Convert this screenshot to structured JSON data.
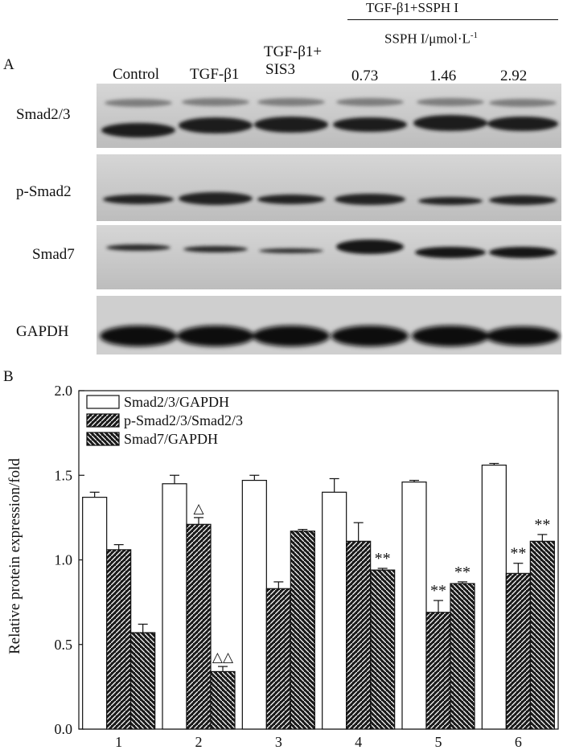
{
  "panel_a": {
    "label": "A",
    "group_header": "TGF-β1+SSPH I",
    "concentration_label": "SSPH I/μmol·L",
    "concentration_exponent": "-1",
    "lanes": [
      "Control",
      "TGF-β1",
      "TGF-β1+",
      "SIS3",
      "0.73",
      "1.46",
      "2.92"
    ],
    "rows": [
      "Smad2/3",
      "p-Smad2",
      "Smad7",
      "GAPDH"
    ]
  },
  "panel_b": {
    "label": "B"
  },
  "chart_data": {
    "type": "bar",
    "ylabel": "Relative protein expression/fold",
    "xlabel": "",
    "ylim": [
      0,
      2.0
    ],
    "yticks": [
      "0.0",
      "0.5",
      "1.0",
      "1.5",
      "2.0"
    ],
    "categories": [
      "1",
      "2",
      "3",
      "4",
      "5",
      "6"
    ],
    "grid": false,
    "legend": "top-left",
    "series": [
      {
        "name": "Smad2/3/GAPDH",
        "pattern": "open",
        "values": [
          1.37,
          1.45,
          1.47,
          1.4,
          1.46,
          1.56
        ],
        "errors": [
          0.03,
          0.05,
          0.03,
          0.08,
          0.01,
          0.01
        ]
      },
      {
        "name": "p-Smad2/3/Smad2/3",
        "pattern": "diagonal",
        "values": [
          1.06,
          1.21,
          0.83,
          1.11,
          0.69,
          0.92
        ],
        "errors": [
          0.03,
          0.04,
          0.04,
          0.11,
          0.07,
          0.06
        ]
      },
      {
        "name": "Smad7/GAPDH",
        "pattern": "cross-diagonal",
        "values": [
          0.57,
          0.34,
          1.17,
          0.94,
          0.86,
          1.11
        ],
        "errors": [
          0.05,
          0.03,
          0.01,
          0.01,
          0.01,
          0.04
        ]
      }
    ],
    "annotations": [
      {
        "series": 1,
        "category": 1,
        "text": "△"
      },
      {
        "series": 2,
        "category": 1,
        "text": "△△"
      },
      {
        "series": 2,
        "category": 3,
        "text": "**"
      },
      {
        "series": 1,
        "category": 4,
        "text": "**"
      },
      {
        "series": 2,
        "category": 4,
        "text": "**"
      },
      {
        "series": 1,
        "category": 5,
        "text": "**"
      },
      {
        "series": 2,
        "category": 5,
        "text": "**"
      }
    ]
  }
}
